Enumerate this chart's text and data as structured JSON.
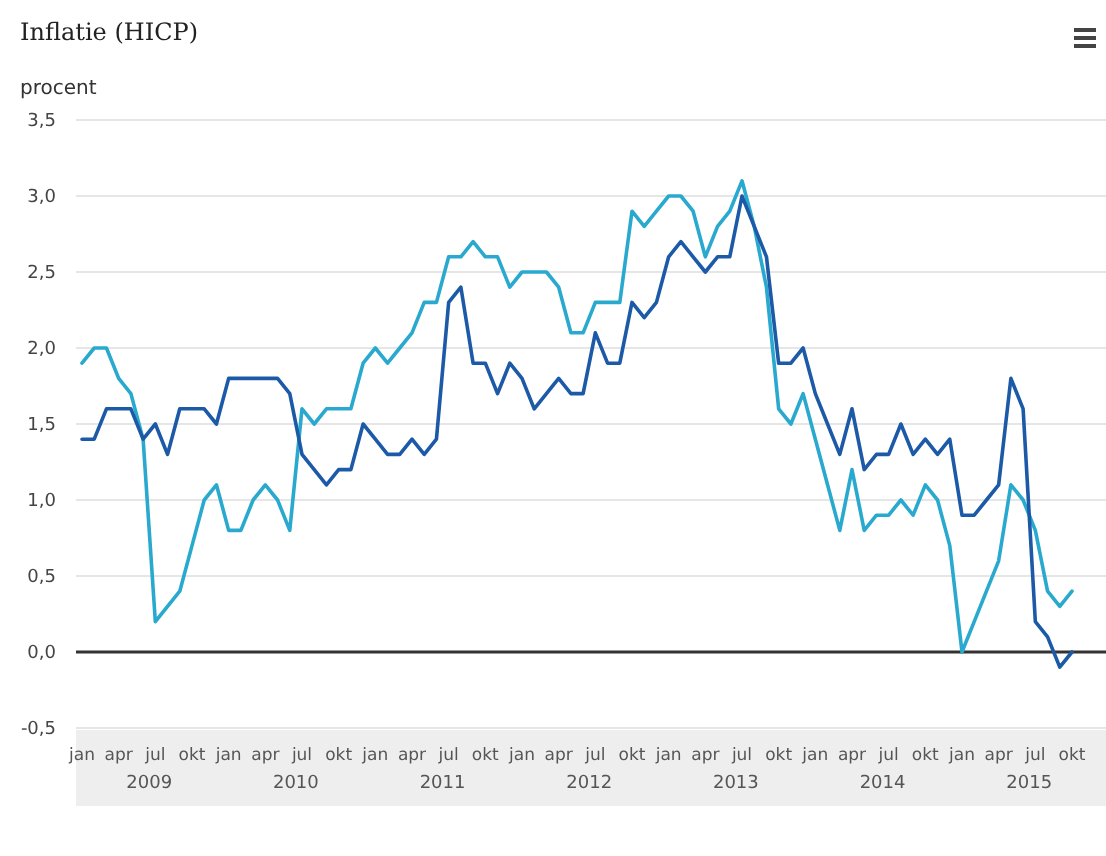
{
  "chart_data": {
    "type": "line",
    "title": "Inflatie (HICP)",
    "ylabel": "procent",
    "categories": [
      "jan",
      null,
      null,
      "apr",
      null,
      null,
      "jul",
      null,
      null,
      "okt",
      null,
      null,
      "jan",
      null,
      null,
      "apr",
      null,
      null,
      "jul",
      null,
      null,
      "okt",
      null,
      null,
      "jan",
      null,
      null,
      "apr",
      null,
      null,
      "jul",
      null,
      null,
      "okt",
      null,
      null,
      "jan",
      null,
      null,
      "apr",
      null,
      null,
      "jul",
      null,
      null,
      "okt",
      null,
      null,
      "jan",
      null,
      null,
      "apr",
      null,
      null,
      "jul",
      null,
      null,
      "okt",
      null,
      null,
      "jan",
      null,
      null,
      "apr",
      null,
      null,
      "jul",
      null,
      null,
      "okt",
      null,
      null,
      "jan",
      null,
      null,
      "apr",
      null,
      null,
      "jul",
      null,
      null,
      "okt"
    ],
    "series": [
      {
        "color": "#2aa9cf",
        "values": [
          1.9,
          2.0,
          2.0,
          1.8,
          1.7,
          1.4,
          0.2,
          0.3,
          0.4,
          0.7,
          1.0,
          1.1,
          0.8,
          0.8,
          1.0,
          1.1,
          1.0,
          0.8,
          1.6,
          1.5,
          1.6,
          1.6,
          1.6,
          1.9,
          2.0,
          1.9,
          2.0,
          2.1,
          2.3,
          2.3,
          2.6,
          2.6,
          2.7,
          2.6,
          2.6,
          2.4,
          2.5,
          2.5,
          2.5,
          2.4,
          2.1,
          2.1,
          2.3,
          2.3,
          2.3,
          2.9,
          2.8,
          2.9,
          3.0,
          3.0,
          2.9,
          2.6,
          2.8,
          2.9,
          3.1,
          2.8,
          2.4,
          1.6,
          1.5,
          1.7,
          1.4,
          1.1,
          0.8,
          1.2,
          0.8,
          0.9,
          0.9,
          1.0,
          0.9,
          1.1,
          1.0,
          0.7,
          0.0,
          0.2,
          0.4,
          0.6,
          1.1,
          1.0,
          0.8,
          0.4,
          0.3,
          0.4
        ]
      },
      {
        "color": "#1c5aa8",
        "values": [
          1.4,
          1.4,
          1.6,
          1.6,
          1.6,
          1.4,
          1.5,
          1.3,
          1.6,
          1.6,
          1.6,
          1.5,
          1.8,
          1.8,
          1.8,
          1.8,
          1.8,
          1.7,
          1.3,
          1.2,
          1.1,
          1.2,
          1.2,
          1.5,
          1.4,
          1.3,
          1.3,
          1.4,
          1.3,
          1.4,
          2.3,
          2.4,
          1.9,
          1.9,
          1.7,
          1.9,
          1.8,
          1.6,
          1.7,
          1.8,
          1.7,
          1.7,
          2.1,
          1.9,
          1.9,
          2.3,
          2.2,
          2.3,
          2.6,
          2.7,
          2.6,
          2.5,
          2.6,
          2.6,
          3.0,
          2.8,
          2.6,
          1.9,
          1.9,
          2.0,
          1.7,
          1.5,
          1.3,
          1.6,
          1.2,
          1.3,
          1.3,
          1.5,
          1.3,
          1.4,
          1.3,
          1.4,
          0.9,
          0.9,
          1.0,
          1.1,
          1.8,
          1.6,
          0.2,
          0.1,
          -0.1,
          0.0
        ]
      }
    ],
    "ylim": [
      -0.5,
      3.5
    ],
    "yticks": [
      {
        "value": -0.5,
        "label": "-0,5"
      },
      {
        "value": 0,
        "label": "0,0"
      },
      {
        "value": 0.5,
        "label": "0,5"
      },
      {
        "value": 1,
        "label": "1,0"
      },
      {
        "value": 1.5,
        "label": "1,5"
      },
      {
        "value": 2,
        "label": "2,0"
      },
      {
        "value": 2.5,
        "label": "2,5"
      },
      {
        "value": 3,
        "label": "3,0"
      },
      {
        "value": 3.5,
        "label": "3,5"
      }
    ],
    "grid": true,
    "ref_lines": [
      {
        "axis": "y",
        "value": 0,
        "color": "#333333"
      }
    ],
    "annotations": [
      "2009",
      "2010",
      "2011",
      "2012",
      "2013",
      "2014",
      "2015"
    ]
  }
}
